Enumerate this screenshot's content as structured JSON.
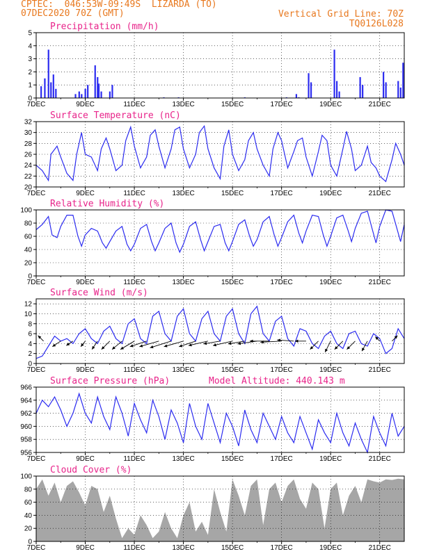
{
  "header": {
    "line1": "CPTEC:  046:53W-09:49S  LIZARDA (TO)",
    "line2": "07DEC2020 70Z (GMT)",
    "right1": "Vertical Grid Line: 70Z",
    "right2": "TQ0126L028"
  },
  "colors": {
    "header": "#e8781e",
    "title": "#e8238a",
    "series": "#2b2bf0",
    "cloud": "#a6a6a6",
    "grid": "#000000"
  },
  "chart_data": [
    {
      "id": "precip",
      "type": "bar",
      "title": "Precipitation (mm/h)",
      "ylim": [
        0,
        5
      ],
      "yticks": [
        0,
        1,
        2,
        3,
        4,
        5
      ],
      "xticks": [
        "7DEC",
        "9DEC",
        "11DEC",
        "13DEC",
        "15DEC",
        "17DEC",
        "19DEC",
        "21DEC"
      ],
      "xlim": [
        0,
        15
      ],
      "x": [
        0.2,
        0.35,
        0.5,
        0.6,
        0.7,
        0.8,
        1.6,
        1.75,
        1.85,
        2.0,
        2.1,
        2.4,
        2.5,
        2.55,
        2.65,
        3.0,
        3.1,
        5.2,
        5.8,
        8.5,
        10.2,
        10.6,
        10.7,
        11.1,
        11.2,
        12.15,
        12.25,
        12.35,
        13.2,
        13.3,
        14.15,
        14.25,
        14.75,
        14.85,
        14.95
      ],
      "values": [
        0.9,
        1.5,
        3.7,
        1.2,
        1.8,
        0.7,
        0.3,
        0.5,
        0.3,
        0.7,
        1.0,
        2.5,
        1.6,
        1.1,
        0.5,
        0.5,
        1.0,
        0.05,
        0.05,
        0.05,
        0.05,
        0.3,
        0.05,
        1.9,
        1.2,
        3.7,
        1.3,
        0.5,
        1.6,
        1.0,
        2.0,
        1.2,
        1.3,
        0.8,
        2.7
      ]
    },
    {
      "id": "temp",
      "type": "line",
      "title": "Surface Temperature (nC)",
      "ylim": [
        20,
        32
      ],
      "yticks": [
        20,
        22,
        24,
        26,
        28,
        30,
        32
      ],
      "xticks": [
        "7DEC",
        "9DEC",
        "11DEC",
        "13DEC",
        "15DEC",
        "17DEC",
        "19DEC",
        "21DEC"
      ],
      "xlim": [
        0,
        15
      ],
      "x": [
        0,
        0.25,
        0.5,
        0.6,
        0.85,
        1.0,
        1.25,
        1.5,
        1.65,
        1.85,
        2.0,
        2.25,
        2.5,
        2.65,
        2.85,
        3.0,
        3.25,
        3.5,
        3.65,
        3.85,
        4.0,
        4.25,
        4.5,
        4.65,
        4.85,
        5.0,
        5.25,
        5.5,
        5.65,
        5.85,
        6.0,
        6.25,
        6.5,
        6.65,
        6.85,
        7.0,
        7.25,
        7.5,
        7.65,
        7.85,
        8.0,
        8.25,
        8.5,
        8.65,
        8.85,
        9.0,
        9.25,
        9.5,
        9.65,
        9.85,
        10.0,
        10.25,
        10.5,
        10.65,
        10.85,
        11.0,
        11.25,
        11.5,
        11.65,
        11.85,
        12.0,
        12.25,
        12.5,
        12.65,
        12.85,
        13.0,
        13.25,
        13.5,
        13.65,
        13.85,
        14.0,
        14.25,
        14.5,
        14.65,
        14.85,
        15.0
      ],
      "values": [
        24.0,
        23.0,
        21.2,
        26.0,
        27.5,
        25.5,
        22.5,
        21.2,
        26.0,
        30.0,
        26.0,
        25.5,
        23.0,
        27.0,
        29.0,
        27.0,
        23.0,
        24.0,
        28.5,
        31.0,
        27.5,
        23.5,
        25.5,
        29.5,
        30.5,
        27.5,
        23.5,
        27.0,
        30.5,
        31.0,
        27.0,
        23.5,
        26.0,
        30.0,
        31.2,
        27.0,
        23.5,
        21.5,
        27.5,
        30.5,
        26.0,
        23.0,
        25.0,
        28.5,
        30.0,
        27.0,
        24.0,
        22.0,
        27.0,
        30.0,
        28.5,
        23.5,
        26.5,
        28.5,
        29.0,
        25.5,
        22.0,
        26.5,
        29.5,
        28.5,
        24.0,
        22.0,
        27.0,
        30.2,
        27.0,
        23.0,
        24.0,
        27.5,
        24.5,
        23.5,
        22.0,
        21.0,
        25.0,
        28.0,
        26.0,
        24.0
      ]
    },
    {
      "id": "rh",
      "type": "line",
      "title": "Relative Humidity (%)",
      "ylim": [
        0,
        100
      ],
      "yticks": [
        0,
        20,
        40,
        60,
        80,
        100
      ],
      "xticks": [
        "7DEC",
        "9DEC",
        "11DEC",
        "13DEC",
        "15DEC",
        "17DEC",
        "19DEC",
        "21DEC"
      ],
      "xlim": [
        0,
        15
      ],
      "x": [
        0,
        0.25,
        0.5,
        0.65,
        0.85,
        1.0,
        1.25,
        1.5,
        1.7,
        1.85,
        2.0,
        2.25,
        2.5,
        2.7,
        2.85,
        3.0,
        3.25,
        3.5,
        3.7,
        3.85,
        4.0,
        4.25,
        4.5,
        4.7,
        4.85,
        5.0,
        5.25,
        5.5,
        5.7,
        5.85,
        6.0,
        6.25,
        6.5,
        6.7,
        6.85,
        7.0,
        7.25,
        7.5,
        7.7,
        7.85,
        8.0,
        8.25,
        8.5,
        8.7,
        8.85,
        9.0,
        9.25,
        9.5,
        9.7,
        9.85,
        10.0,
        10.25,
        10.5,
        10.7,
        10.85,
        11.0,
        11.25,
        11.5,
        11.7,
        11.85,
        12.0,
        12.25,
        12.5,
        12.7,
        12.85,
        13.0,
        13.25,
        13.5,
        13.7,
        13.85,
        14.0,
        14.25,
        14.5,
        14.7,
        14.85,
        15.0
      ],
      "values": [
        70,
        78,
        90,
        62,
        58,
        75,
        92,
        92,
        60,
        45,
        62,
        72,
        68,
        50,
        42,
        52,
        68,
        75,
        48,
        38,
        48,
        72,
        78,
        52,
        38,
        50,
        72,
        80,
        50,
        36,
        48,
        75,
        82,
        55,
        38,
        52,
        75,
        78,
        50,
        38,
        52,
        78,
        85,
        60,
        45,
        55,
        82,
        90,
        62,
        45,
        58,
        82,
        92,
        65,
        50,
        68,
        92,
        90,
        62,
        45,
        60,
        88,
        92,
        70,
        52,
        72,
        95,
        98,
        70,
        50,
        75,
        100,
        98,
        72,
        52,
        78
      ]
    },
    {
      "id": "wind",
      "type": "line",
      "title": "Surface Wind (m/s)",
      "ylim": [
        0,
        13
      ],
      "yticks": [
        0,
        2,
        4,
        6,
        8,
        10,
        12
      ],
      "xticks": [
        "7DEC",
        "9DEC",
        "11DEC",
        "13DEC",
        "15DEC",
        "17DEC",
        "19DEC",
        "21DEC"
      ],
      "xlim": [
        0,
        15
      ],
      "x": [
        0,
        0.25,
        0.5,
        0.75,
        1.0,
        1.25,
        1.5,
        1.75,
        2.0,
        2.25,
        2.5,
        2.75,
        3.0,
        3.25,
        3.5,
        3.75,
        4.0,
        4.25,
        4.5,
        4.75,
        5.0,
        5.25,
        5.5,
        5.75,
        6.0,
        6.25,
        6.5,
        6.75,
        7.0,
        7.25,
        7.5,
        7.75,
        8.0,
        8.25,
        8.5,
        8.75,
        9.0,
        9.25,
        9.5,
        9.75,
        10.0,
        10.25,
        10.5,
        10.75,
        11.0,
        11.25,
        11.5,
        11.75,
        12.0,
        12.25,
        12.5,
        12.75,
        13.0,
        13.25,
        13.5,
        13.75,
        14.0,
        14.25,
        14.5,
        14.75,
        15.0
      ],
      "values": [
        1.0,
        1.5,
        3.5,
        5.5,
        4.5,
        5.0,
        4.0,
        6.0,
        7.0,
        5.0,
        4.0,
        6.5,
        7.5,
        5.0,
        4.0,
        8.0,
        9.0,
        5.0,
        4.0,
        9.5,
        10.5,
        6.0,
        4.5,
        9.5,
        11.0,
        6.0,
        4.5,
        9.0,
        10.5,
        6.0,
        4.5,
        9.5,
        11.0,
        6.0,
        4.0,
        10.0,
        11.5,
        6.0,
        4.5,
        8.5,
        9.5,
        5.0,
        3.5,
        7.0,
        6.5,
        4.0,
        3.0,
        5.5,
        6.5,
        4.0,
        3.0,
        6.0,
        6.5,
        4.0,
        3.5,
        6.0,
        5.0,
        2.0,
        3.0,
        7.0,
        5.0
      ],
      "vectors": {
        "x": [
          0.3,
          1.0,
          1.5,
          2.0,
          2.5,
          3.0,
          3.5,
          4.0,
          4.5,
          5.0,
          5.5,
          6.0,
          6.5,
          7.0,
          7.5,
          8.0,
          8.5,
          9.0,
          9.5,
          10.0,
          10.5,
          11.0,
          11.5,
          12.0,
          12.5,
          13.0,
          13.5,
          14.0,
          14.5
        ],
        "u": [
          -1.0,
          -1.5,
          -1.2,
          -0.8,
          -1.0,
          -1.5,
          -1.8,
          -2.5,
          -3.0,
          -3.5,
          -3.8,
          -3.5,
          -3.0,
          -3.5,
          -3.0,
          -3.5,
          -3.0,
          -3.5,
          -3.5,
          -3.8,
          -3.0,
          -2.0,
          -1.5,
          -1.0,
          -1.5,
          -1.5,
          -1.0,
          -0.8,
          1.0
        ],
        "v": [
          1.0,
          -1.0,
          -0.8,
          -1.0,
          -1.5,
          -1.5,
          -1.5,
          -1.5,
          -1.0,
          -1.0,
          -1.2,
          -1.0,
          -1.0,
          -0.8,
          -0.5,
          -0.8,
          -0.5,
          -0.5,
          0.0,
          -0.2,
          0.2,
          0.0,
          -1.5,
          -2.0,
          -1.5,
          -1.5,
          -1.8,
          0.8,
          1.0
        ]
      }
    },
    {
      "id": "pressure",
      "type": "line",
      "title": "Surface Pressure (hPa)",
      "subtitle": "Model Altitude: 440.143 m",
      "ylim": [
        956,
        966
      ],
      "yticks": [
        956,
        958,
        960,
        962,
        964,
        966
      ],
      "xticks": [
        "7DEC",
        "9DEC",
        "11DEC",
        "13DEC",
        "15DEC",
        "17DEC",
        "19DEC",
        "21DEC"
      ],
      "xlim": [
        0,
        15
      ],
      "x": [
        0,
        0.25,
        0.5,
        0.75,
        1.0,
        1.25,
        1.5,
        1.75,
        2.0,
        2.25,
        2.5,
        2.75,
        3.0,
        3.25,
        3.5,
        3.75,
        4.0,
        4.25,
        4.5,
        4.75,
        5.0,
        5.25,
        5.5,
        5.75,
        6.0,
        6.25,
        6.5,
        6.75,
        7.0,
        7.25,
        7.5,
        7.75,
        8.0,
        8.25,
        8.5,
        8.75,
        9.0,
        9.25,
        9.5,
        9.75,
        10.0,
        10.25,
        10.5,
        10.75,
        11.0,
        11.25,
        11.5,
        11.75,
        12.0,
        12.25,
        12.5,
        12.75,
        13.0,
        13.25,
        13.5,
        13.75,
        14.0,
        14.25,
        14.5,
        14.75,
        15.0
      ],
      "values": [
        962.0,
        964.0,
        963.0,
        964.5,
        962.5,
        960.0,
        962.0,
        965.0,
        962.0,
        960.5,
        964.5,
        961.5,
        959.5,
        964.5,
        962.0,
        958.5,
        963.5,
        961.0,
        959.0,
        964.0,
        961.5,
        958.0,
        962.5,
        960.5,
        957.5,
        963.5,
        960.0,
        958.0,
        963.5,
        960.5,
        957.5,
        962.0,
        960.0,
        957.0,
        962.5,
        959.5,
        957.5,
        962.0,
        960.0,
        958.0,
        961.5,
        959.0,
        957.5,
        961.5,
        959.0,
        956.5,
        961.0,
        959.0,
        957.5,
        962.0,
        959.0,
        957.0,
        960.5,
        958.0,
        956.0,
        961.5,
        959.0,
        957.0,
        962.0,
        958.5,
        960.0
      ]
    },
    {
      "id": "cloud",
      "type": "area",
      "title": "Cloud Cover (%)",
      "ylim": [
        0,
        100
      ],
      "yticks": [
        0,
        20,
        40,
        60,
        80,
        100
      ],
      "xticks": [
        "7DEC",
        "9DEC",
        "11DEC",
        "13DEC",
        "15DEC",
        "17DEC",
        "19DEC",
        "21DEC"
      ],
      "xlim": [
        0,
        15
      ],
      "x": [
        0,
        0.25,
        0.5,
        0.75,
        1.0,
        1.25,
        1.5,
        1.75,
        2.0,
        2.25,
        2.5,
        2.75,
        3.0,
        3.25,
        3.5,
        3.75,
        4.0,
        4.25,
        4.5,
        4.75,
        5.0,
        5.25,
        5.5,
        5.75,
        6.0,
        6.25,
        6.5,
        6.75,
        7.0,
        7.25,
        7.5,
        7.75,
        8.0,
        8.25,
        8.5,
        8.75,
        9.0,
        9.25,
        9.5,
        9.75,
        10.0,
        10.25,
        10.5,
        10.75,
        11.0,
        11.25,
        11.5,
        11.75,
        12.0,
        12.25,
        12.5,
        12.75,
        13.0,
        13.25,
        13.5,
        13.75,
        14.0,
        14.25,
        14.5,
        14.75,
        15.0
      ],
      "values": [
        80,
        95,
        70,
        90,
        60,
        85,
        92,
        75,
        55,
        85,
        80,
        45,
        70,
        35,
        5,
        20,
        10,
        40,
        25,
        5,
        15,
        45,
        20,
        5,
        40,
        60,
        15,
        30,
        10,
        80,
        45,
        15,
        95,
        70,
        40,
        85,
        95,
        25,
        80,
        90,
        60,
        85,
        95,
        65,
        50,
        90,
        80,
        20,
        80,
        90,
        40,
        70,
        85,
        60,
        95,
        92,
        90,
        95,
        94,
        96,
        95
      ]
    }
  ]
}
